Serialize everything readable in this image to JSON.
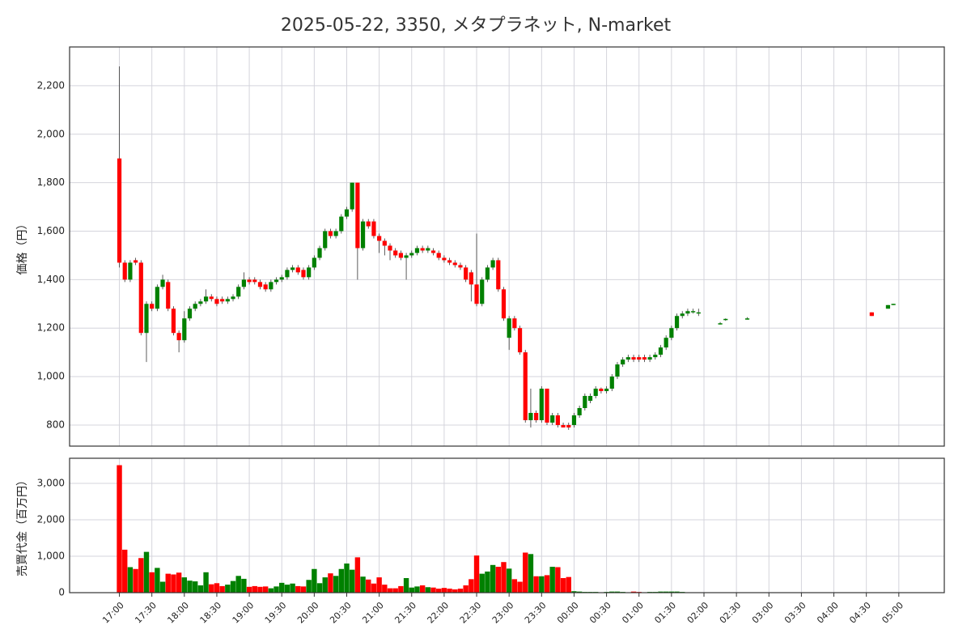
{
  "chart_data": [
    {
      "type": "candlestick",
      "title": "2025-05-22, 3350, メタプラネット, N-market",
      "ylabel": "価格（円）",
      "up_color": "#008000",
      "down_color": "#ff0000",
      "grid": true,
      "xlim": [
        "16:14",
        "05:42"
      ],
      "ylim": [
        713,
        2360
      ],
      "yticks": [
        800,
        {
          "value": 1000,
          "label": "1,000"
        },
        {
          "value": 1200,
          "label": "1,200"
        },
        {
          "value": 1400,
          "label": "1,400"
        },
        {
          "value": 1600,
          "label": "1,600"
        },
        {
          "value": 1800,
          "label": "1,800"
        },
        {
          "value": 2000,
          "label": "2,000"
        },
        {
          "value": 2200,
          "label": "2,200"
        }
      ],
      "x": [
        "17:00",
        "17:05",
        "17:10",
        "17:15",
        "17:20",
        "17:25",
        "17:30",
        "17:35",
        "17:40",
        "17:45",
        "17:50",
        "17:55",
        "18:00",
        "18:05",
        "18:10",
        "18:15",
        "18:20",
        "18:25",
        "18:30",
        "18:35",
        "18:40",
        "18:45",
        "18:50",
        "18:55",
        "19:00",
        "19:05",
        "19:10",
        "19:15",
        "19:20",
        "19:25",
        "19:30",
        "19:35",
        "19:40",
        "19:45",
        "19:50",
        "19:55",
        "20:00",
        "20:05",
        "20:10",
        "20:15",
        "20:20",
        "20:25",
        "20:30",
        "20:35",
        "20:40",
        "20:45",
        "20:50",
        "20:55",
        "21:00",
        "21:05",
        "21:10",
        "21:15",
        "21:20",
        "21:25",
        "21:30",
        "21:35",
        "21:40",
        "21:45",
        "21:50",
        "21:55",
        "22:00",
        "22:05",
        "22:10",
        "22:15",
        "22:20",
        "22:25",
        "22:30",
        "22:35",
        "22:40",
        "22:45",
        "22:50",
        "22:55",
        "23:00",
        "23:05",
        "23:10",
        "23:15",
        "23:20",
        "23:25",
        "23:30",
        "23:35",
        "23:40",
        "23:45",
        "23:50",
        "23:55",
        "00:00",
        "00:05",
        "00:10",
        "00:15",
        "00:20",
        "00:25",
        "00:30",
        "00:35",
        "00:40",
        "00:45",
        "00:50",
        "00:55",
        "01:00",
        "01:05",
        "01:10",
        "01:15",
        "01:20",
        "01:25",
        "01:30",
        "01:35",
        "01:40",
        "01:45",
        "01:50",
        "01:55",
        "02:15",
        "02:20",
        "02:40",
        "04:35",
        "04:50",
        "04:55"
      ],
      "open": [
        1900,
        1470,
        1400,
        1480,
        1470,
        1180,
        1300,
        1280,
        1370,
        1390,
        1280,
        1180,
        1150,
        1240,
        1280,
        1300,
        1310,
        1330,
        1320,
        1320,
        1310,
        1320,
        1330,
        1370,
        1400,
        1400,
        1390,
        1380,
        1360,
        1390,
        1400,
        1410,
        1440,
        1450,
        1440,
        1410,
        1450,
        1490,
        1530,
        1600,
        1580,
        1600,
        1660,
        1690,
        1800,
        1530,
        1640,
        1640,
        1580,
        1560,
        1540,
        1520,
        1510,
        1490,
        1500,
        1510,
        1530,
        1520,
        1520,
        1510,
        1490,
        1480,
        1470,
        1460,
        1450,
        1430,
        1380,
        1300,
        1400,
        1450,
        1480,
        1360,
        1160,
        1240,
        1200,
        1100,
        820,
        850,
        820,
        950,
        810,
        840,
        800,
        800,
        800,
        840,
        870,
        900,
        920,
        950,
        940,
        950,
        1000,
        1050,
        1070,
        1080,
        1080,
        1080,
        1070,
        1080,
        1090,
        1120,
        1160,
        1200,
        1250,
        1260,
        1270,
        1260,
        1220,
        1235,
        1240,
        1265,
        1280,
        1300
      ],
      "high": [
        2280,
        1480,
        1480,
        1490,
        1480,
        1310,
        1310,
        1380,
        1420,
        1400,
        1290,
        1190,
        1270,
        1290,
        1310,
        1320,
        1360,
        1340,
        1330,
        1330,
        1330,
        1340,
        1380,
        1430,
        1410,
        1410,
        1400,
        1390,
        1400,
        1410,
        1420,
        1450,
        1460,
        1460,
        1450,
        1460,
        1500,
        1540,
        1610,
        1610,
        1610,
        1670,
        1700,
        1800,
        1800,
        1650,
        1650,
        1650,
        1590,
        1570,
        1550,
        1530,
        1520,
        1510,
        1520,
        1540,
        1540,
        1540,
        1530,
        1520,
        1500,
        1490,
        1480,
        1470,
        1460,
        1440,
        1590,
        1410,
        1460,
        1490,
        1490,
        1370,
        1250,
        1250,
        1210,
        1110,
        950,
        860,
        960,
        950,
        850,
        850,
        810,
        810,
        850,
        880,
        930,
        930,
        960,
        955,
        960,
        1010,
        1060,
        1080,
        1090,
        1090,
        1090,
        1090,
        1090,
        1100,
        1130,
        1170,
        1210,
        1260,
        1270,
        1280,
        1280,
        1280,
        1225,
        1240,
        1245,
        1265,
        1295,
        1300
      ],
      "low": [
        1450,
        1390,
        1390,
        1460,
        1170,
        1060,
        1270,
        1270,
        1360,
        1270,
        1170,
        1100,
        1140,
        1230,
        1270,
        1290,
        1300,
        1310,
        1290,
        1300,
        1300,
        1310,
        1320,
        1360,
        1380,
        1380,
        1360,
        1350,
        1350,
        1380,
        1390,
        1400,
        1430,
        1420,
        1400,
        1400,
        1440,
        1480,
        1520,
        1570,
        1570,
        1590,
        1650,
        1680,
        1400,
        1520,
        1610,
        1570,
        1510,
        1500,
        1480,
        1490,
        1480,
        1400,
        1490,
        1500,
        1510,
        1510,
        1500,
        1480,
        1470,
        1460,
        1450,
        1440,
        1390,
        1310,
        1290,
        1290,
        1390,
        1440,
        1350,
        1230,
        1110,
        1190,
        1090,
        810,
        790,
        810,
        810,
        800,
        800,
        790,
        790,
        780,
        790,
        830,
        860,
        890,
        910,
        930,
        930,
        940,
        990,
        1040,
        1060,
        1060,
        1060,
        1060,
        1060,
        1070,
        1080,
        1110,
        1150,
        1190,
        1240,
        1250,
        1260,
        1250,
        1215,
        1230,
        1235,
        1250,
        1280,
        1295
      ],
      "close": [
        1470,
        1400,
        1470,
        1470,
        1180,
        1300,
        1280,
        1370,
        1400,
        1280,
        1180,
        1150,
        1240,
        1280,
        1300,
        1310,
        1330,
        1320,
        1300,
        1310,
        1320,
        1330,
        1370,
        1400,
        1390,
        1390,
        1370,
        1360,
        1390,
        1400,
        1410,
        1440,
        1450,
        1430,
        1410,
        1450,
        1490,
        1530,
        1600,
        1580,
        1600,
        1660,
        1690,
        1800,
        1530,
        1640,
        1620,
        1580,
        1560,
        1540,
        1520,
        1500,
        1490,
        1500,
        1510,
        1530,
        1520,
        1530,
        1510,
        1490,
        1480,
        1470,
        1460,
        1450,
        1400,
        1380,
        1300,
        1400,
        1450,
        1480,
        1360,
        1240,
        1240,
        1200,
        1100,
        820,
        850,
        820,
        950,
        810,
        840,
        800,
        790,
        790,
        840,
        870,
        920,
        920,
        950,
        940,
        950,
        1000,
        1050,
        1070,
        1080,
        1070,
        1070,
        1070,
        1080,
        1090,
        1120,
        1160,
        1200,
        1250,
        1260,
        1270,
        1270,
        1265,
        1220,
        1238,
        1240,
        1250,
        1295,
        1300
      ]
    },
    {
      "type": "bar",
      "ylabel": "売買代金（百万円）",
      "grid": true,
      "xlim": [
        "16:14",
        "05:42"
      ],
      "ylim": [
        0,
        3690
      ],
      "yticks": [
        0,
        {
          "value": 1000,
          "label": "1,000"
        },
        {
          "value": 2000,
          "label": "2,000"
        },
        {
          "value": 3000,
          "label": "3,000"
        }
      ],
      "xticks": [
        "17:00",
        "17:30",
        "18:00",
        "18:30",
        "19:00",
        "19:30",
        "20:00",
        "20:30",
        "21:00",
        "21:30",
        "22:00",
        "22:30",
        "23:00",
        "23:30",
        "00:00",
        "00:30",
        "01:00",
        "01:30",
        "02:00",
        "02:30",
        "03:00",
        "03:30",
        "04:00",
        "04:30",
        "05:00"
      ],
      "values": [
        3500,
        1180,
        700,
        650,
        950,
        1120,
        560,
        680,
        300,
        520,
        500,
        550,
        420,
        330,
        310,
        200,
        560,
        230,
        260,
        180,
        220,
        320,
        460,
        380,
        160,
        180,
        160,
        170,
        120,
        170,
        270,
        220,
        250,
        180,
        170,
        350,
        650,
        260,
        420,
        530,
        460,
        650,
        800,
        630,
        970,
        440,
        360,
        250,
        420,
        220,
        120,
        120,
        180,
        400,
        140,
        170,
        200,
        150,
        140,
        110,
        130,
        110,
        90,
        110,
        200,
        370,
        1020,
        520,
        580,
        760,
        710,
        840,
        660,
        370,
        300,
        1100,
        1060,
        450,
        450,
        480,
        710,
        700,
        400,
        430,
        40,
        30,
        20,
        20,
        20,
        10,
        20,
        30,
        30,
        20,
        10,
        30,
        20,
        10,
        20,
        20,
        30,
        30,
        30,
        30,
        20,
        10,
        10,
        10,
        5,
        5,
        5,
        5,
        10,
        5
      ]
    }
  ]
}
